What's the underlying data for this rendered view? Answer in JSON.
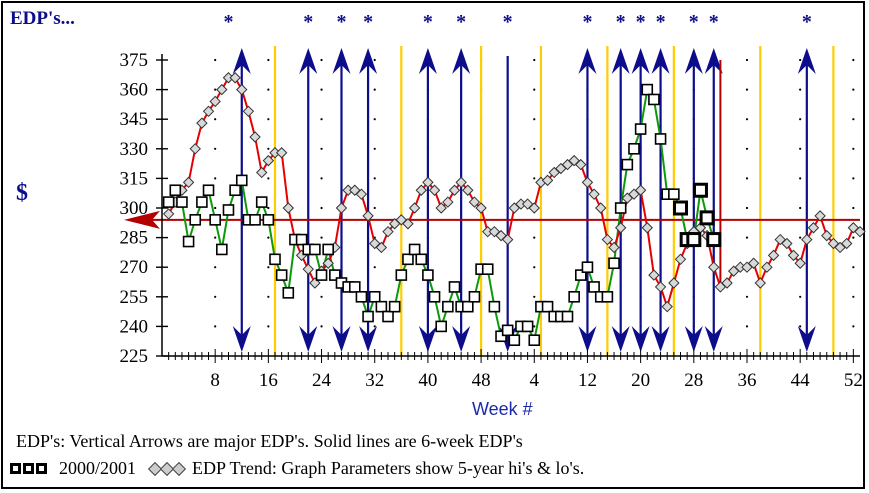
{
  "corner_title": "EDP's...",
  "ylabel": "$",
  "xlabel": "Week #",
  "note_line": "EDP's: Vertical Arrows are major EDP's.  Solid lines are 6-week EDP's",
  "legend": {
    "series1_label": "2000/2001",
    "series2_label": "EDP Trend: Graph Parameters show 5-year hi's & lo's."
  },
  "colors": {
    "arrow": "#0d0d8c",
    "vline": "#ffcc00",
    "hline": "#b30000",
    "trend_line": "#e60000",
    "current_line": "#0a9a0a"
  },
  "chart_data": {
    "type": "line",
    "title": "",
    "xlabel": "Week #",
    "ylabel": "$",
    "x_tick_labels": [
      "8",
      "16",
      "24",
      "32",
      "40",
      "48",
      "4",
      "12",
      "20",
      "28",
      "36",
      "44",
      "52"
    ],
    "x_tick_positions": [
      8,
      16,
      24,
      32,
      40,
      48,
      56,
      64,
      72,
      80,
      88,
      96,
      104
    ],
    "xlim": [
      0,
      105
    ],
    "yticks": [
      225,
      240,
      255,
      270,
      285,
      300,
      315,
      330,
      345,
      360,
      375
    ],
    "ylim": [
      225,
      375
    ],
    "horizontal_line": 294,
    "star_markers_at_x": [
      10,
      22,
      27,
      31,
      40,
      45,
      52,
      64,
      69,
      72,
      75,
      80,
      83,
      97
    ],
    "major_edp_arrows": [
      {
        "x": 12,
        "y_top": 367,
        "direction": "both"
      },
      {
        "x": 22,
        "y_top": 355,
        "direction": "both"
      },
      {
        "x": 27,
        "y_top": 355,
        "direction": "both"
      },
      {
        "x": 31,
        "y_top": 355,
        "direction": "both"
      },
      {
        "x": 40,
        "y_top": 355,
        "direction": "both"
      },
      {
        "x": 45,
        "y_top": 355,
        "direction": "both"
      },
      {
        "x": 52,
        "y_top": 355,
        "direction": "down"
      },
      {
        "x": 64,
        "y_top": 355,
        "direction": "both"
      },
      {
        "x": 69,
        "y_top": 355,
        "direction": "both"
      },
      {
        "x": 72,
        "y_top": 355,
        "direction": "both"
      },
      {
        "x": 75,
        "y_top": 355,
        "direction": "both"
      },
      {
        "x": 80,
        "y_top": 355,
        "direction": "both"
      },
      {
        "x": 83,
        "y_top": 355,
        "direction": "both"
      },
      {
        "x": 97,
        "y_top": 355,
        "direction": "both"
      }
    ],
    "six_week_edp_lines_at_x": [
      17,
      36,
      48,
      57,
      67,
      77,
      90,
      101
    ],
    "series": [
      {
        "name": "2000/2001",
        "color": "#0a9a0a",
        "x": [
          1,
          2,
          3,
          4,
          5,
          6,
          7,
          8,
          9,
          10,
          11,
          12,
          13,
          14,
          15,
          16,
          17,
          18,
          19,
          20,
          21,
          22,
          23,
          24,
          25,
          26,
          27,
          28,
          29,
          30,
          31,
          32,
          33,
          34,
          35,
          36,
          37,
          38,
          39,
          40,
          41,
          42,
          43,
          44,
          45,
          46,
          47,
          48,
          49,
          50,
          51,
          52,
          53,
          54,
          55,
          56,
          57,
          58,
          59,
          60,
          61,
          62,
          63,
          64,
          65,
          66,
          67,
          68,
          69,
          70,
          71,
          72,
          73,
          74,
          75,
          76,
          77,
          78,
          79,
          80,
          81,
          82,
          83
        ],
        "y": [
          303,
          309,
          303,
          283,
          294,
          303,
          309,
          294,
          279,
          299,
          309,
          314,
          294,
          294,
          303,
          294,
          274,
          266,
          257,
          284,
          284,
          279,
          279,
          266,
          279,
          266,
          262,
          260,
          260,
          255,
          245,
          255,
          250,
          245,
          250,
          266,
          274,
          279,
          274,
          266,
          255,
          240,
          250,
          260,
          250,
          250,
          255,
          269,
          269,
          250,
          235,
          238,
          233,
          240,
          240,
          233,
          250,
          250,
          245,
          245,
          245,
          255,
          266,
          270,
          260,
          255,
          255,
          272,
          300,
          322,
          330,
          340,
          360,
          355,
          335,
          307,
          307,
          300,
          284,
          284,
          309,
          295,
          284
        ]
      },
      {
        "name": "EDP Trend",
        "color": "#e60000",
        "x": [
          1,
          2,
          3,
          4,
          5,
          6,
          7,
          8,
          9,
          10,
          11,
          12,
          13,
          14,
          15,
          16,
          17,
          18,
          19,
          20,
          21,
          22,
          23,
          24,
          25,
          26,
          27,
          28,
          29,
          30,
          31,
          32,
          33,
          34,
          35,
          36,
          37,
          38,
          39,
          40,
          41,
          42,
          43,
          44,
          45,
          46,
          47,
          48,
          49,
          50,
          51,
          52,
          53,
          54,
          55,
          56,
          57,
          58,
          59,
          60,
          61,
          62,
          63,
          64,
          65,
          66,
          67,
          68,
          69,
          70,
          71,
          72,
          73,
          74,
          75,
          76,
          77,
          78,
          79,
          80,
          81,
          82,
          83,
          84,
          85,
          86,
          87,
          88,
          89,
          90,
          91,
          92,
          93,
          94,
          95,
          96,
          97,
          98,
          99,
          100,
          101,
          102,
          103,
          104,
          105
        ],
        "y": [
          297,
          303,
          309,
          313,
          330,
          343,
          349,
          354,
          360,
          366,
          366,
          360,
          349,
          336,
          318,
          324,
          328,
          328,
          300,
          284,
          276,
          269,
          262,
          268,
          272,
          280,
          300,
          309,
          309,
          307,
          296,
          282,
          280,
          288,
          292,
          294,
          292,
          300,
          309,
          313,
          309,
          300,
          303,
          309,
          313,
          309,
          303,
          300,
          288,
          288,
          286,
          284,
          300,
          302,
          302,
          300,
          313,
          314,
          318,
          320,
          322,
          324,
          322,
          313,
          307,
          300,
          284,
          280,
          290,
          305,
          307,
          309,
          290,
          266,
          260,
          250,
          262,
          274,
          282,
          288,
          290,
          286,
          270,
          260,
          262,
          268,
          270,
          270,
          272,
          262,
          270,
          276,
          284,
          282,
          276,
          272,
          284,
          290,
          296,
          286,
          282,
          280,
          282,
          290,
          288
        ]
      }
    ]
  }
}
